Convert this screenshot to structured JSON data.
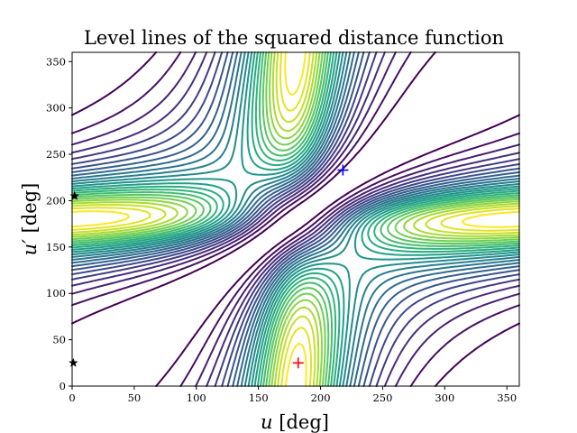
{
  "chart_data": {
    "type": "contour",
    "title": "Level lines of the squared distance function",
    "xlabel": {
      "var": "u",
      "unit": "[deg]"
    },
    "ylabel": {
      "var": "u′",
      "unit": "[deg]"
    },
    "xlim": [
      0,
      360
    ],
    "ylim": [
      0,
      360
    ],
    "xticks": [
      0,
      50,
      100,
      150,
      200,
      250,
      300,
      350
    ],
    "yticks": [
      0,
      50,
      100,
      150,
      200,
      250,
      300,
      350
    ],
    "grid": false,
    "colormap": "viridis",
    "surface": {
      "ellipse_a": 1.0,
      "ellipse_e": 0.7,
      "level_count": 24
    },
    "markers": [
      {
        "name": "plus-blue",
        "symbol": "+",
        "color": "#0000ff",
        "u": 218,
        "u_prime": 233
      },
      {
        "name": "plus-red",
        "symbol": "+",
        "color": "#ff0000",
        "u": 182,
        "u_prime": 25
      },
      {
        "name": "star-upper",
        "symbol": "star",
        "color": "#000000",
        "u": 2,
        "u_prime": 205
      },
      {
        "name": "star-lower",
        "symbol": "star",
        "color": "#000000",
        "u": 1,
        "u_prime": 25
      }
    ]
  }
}
